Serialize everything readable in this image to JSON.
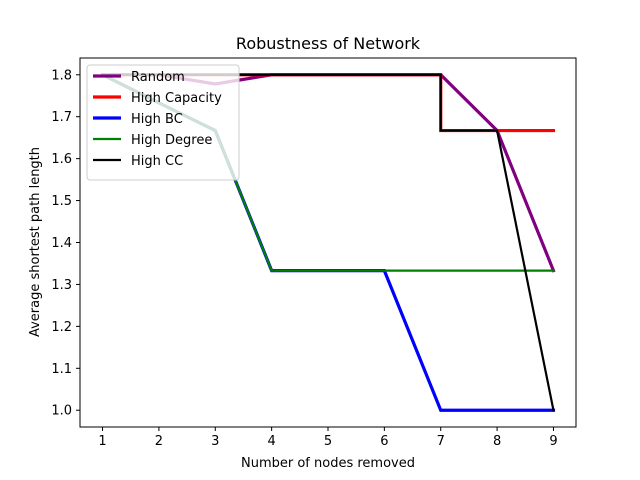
{
  "chart_data": {
    "type": "line",
    "title": "Robustness of Network",
    "xlabel": "Number of nodes removed",
    "ylabel": "Average shortest path length",
    "xlim": [
      0.6,
      9.4
    ],
    "ylim": [
      0.96,
      1.84
    ],
    "xticks": [
      1,
      2,
      3,
      4,
      5,
      6,
      7,
      8,
      9
    ],
    "yticks": [
      1.0,
      1.1,
      1.2,
      1.3,
      1.4,
      1.5,
      1.6,
      1.7,
      1.8
    ],
    "legend_position": "top-left",
    "grid": false,
    "series": [
      {
        "name": "Random",
        "color": "#800080",
        "x": [
          1,
          2,
          3,
          4,
          5,
          6,
          7,
          8,
          9
        ],
        "y": [
          1.8,
          1.8,
          1.778,
          1.8,
          1.8,
          1.8,
          1.8,
          1.667,
          1.333
        ]
      },
      {
        "name": "High Capacity",
        "color": "#ff0000",
        "x": [
          1,
          2,
          3,
          4,
          5,
          6,
          7,
          7,
          8,
          9
        ],
        "y": [
          1.8,
          1.8,
          1.8,
          1.8,
          1.8,
          1.8,
          1.8,
          1.667,
          1.667,
          1.667
        ]
      },
      {
        "name": "High BC",
        "color": "#0000ff",
        "x": [
          1,
          2,
          3,
          4,
          5,
          6,
          7,
          8,
          9
        ],
        "y": [
          1.8,
          1.733,
          1.667,
          1.333,
          1.333,
          1.333,
          1.0,
          1.0,
          1.0
        ]
      },
      {
        "name": "High Degree",
        "color": "#008000",
        "x": [
          1,
          2,
          3,
          4,
          5,
          6,
          7,
          8,
          9
        ],
        "y": [
          1.8,
          1.733,
          1.667,
          1.333,
          1.333,
          1.333,
          1.333,
          1.333,
          1.333
        ]
      },
      {
        "name": "High CC",
        "color": "#000000",
        "x": [
          1,
          2,
          3,
          4,
          5,
          6,
          7,
          7,
          8,
          9
        ],
        "y": [
          1.8,
          1.8,
          1.8,
          1.8,
          1.8,
          1.8,
          1.8,
          1.667,
          1.667,
          1.0
        ]
      }
    ]
  }
}
